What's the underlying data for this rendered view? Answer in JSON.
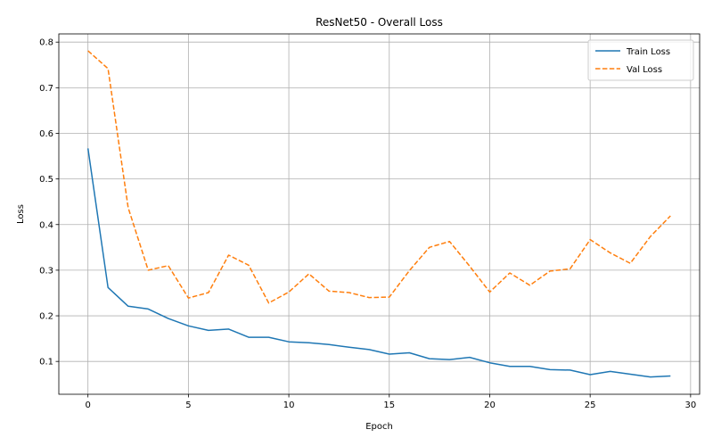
{
  "chart_data": {
    "type": "line",
    "title": "ResNet50 - Overall Loss",
    "xlabel": "Epoch",
    "ylabel": "Loss",
    "xlim": [
      -1.45,
      30.45
    ],
    "ylim": [
      0.028,
      0.818
    ],
    "xticks": [
      0,
      5,
      10,
      15,
      20,
      25,
      30
    ],
    "yticks": [
      0.1,
      0.2,
      0.3,
      0.4,
      0.5,
      0.6,
      0.7,
      0.8
    ],
    "grid": true,
    "legend_position": "top-right",
    "x": [
      0,
      1,
      2,
      3,
      4,
      5,
      6,
      7,
      8,
      9,
      10,
      11,
      12,
      13,
      14,
      15,
      16,
      17,
      18,
      19,
      20,
      21,
      22,
      23,
      24,
      25,
      26,
      27,
      28,
      29
    ],
    "series": [
      {
        "name": "Train Loss",
        "color": "#1f77b4",
        "style": "solid",
        "values": [
          0.567,
          0.262,
          0.221,
          0.215,
          0.194,
          0.178,
          0.168,
          0.171,
          0.153,
          0.153,
          0.143,
          0.141,
          0.137,
          0.131,
          0.126,
          0.116,
          0.119,
          0.106,
          0.104,
          0.109,
          0.097,
          0.089,
          0.089,
          0.082,
          0.081,
          0.071,
          0.078,
          0.072,
          0.066,
          0.068
        ]
      },
      {
        "name": "Val Loss",
        "color": "#ff7f0e",
        "style": "dashed",
        "values": [
          0.781,
          0.742,
          0.437,
          0.3,
          0.31,
          0.239,
          0.251,
          0.333,
          0.311,
          0.228,
          0.252,
          0.292,
          0.254,
          0.251,
          0.24,
          0.241,
          0.299,
          0.35,
          0.363,
          0.309,
          0.252,
          0.294,
          0.267,
          0.298,
          0.303,
          0.367,
          0.338,
          0.315,
          0.374,
          0.419
        ]
      }
    ]
  }
}
